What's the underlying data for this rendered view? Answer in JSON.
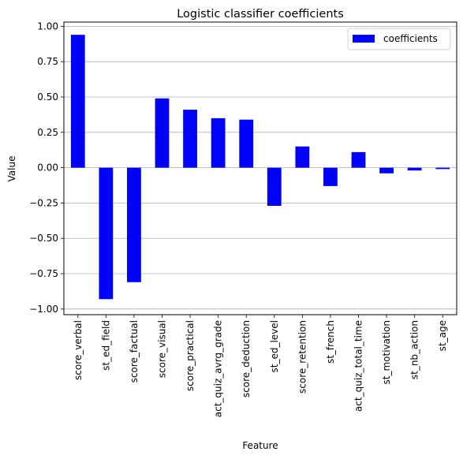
{
  "chart_data": {
    "type": "bar",
    "title": "Logistic classifier coefficients",
    "xlabel": "Feature",
    "ylabel": "Value",
    "categories": [
      "score_verbal",
      "st_ed_field",
      "score_factual",
      "score_visual",
      "score_practical",
      "act_quiz_avrg_grade",
      "score_deduction",
      "st_ed_level",
      "score_retention",
      "st_french",
      "act_quiz_total_time",
      "st_motivation",
      "st_nb_action",
      "st_age"
    ],
    "series": [
      {
        "name": "coefficients",
        "color": "#0000ff",
        "values": [
          0.94,
          -0.93,
          -0.81,
          0.49,
          0.41,
          0.35,
          0.34,
          -0.27,
          0.15,
          -0.13,
          0.11,
          -0.04,
          -0.02,
          -0.01
        ]
      }
    ],
    "ylim": [
      -1.04,
      1.03
    ],
    "yticks": [
      -1.0,
      -0.75,
      -0.5,
      -0.25,
      0.0,
      0.25,
      0.5,
      0.75,
      1.0
    ],
    "ytick_labels": [
      "−1.00",
      "−0.75",
      "−0.50",
      "−0.25",
      "0.00",
      "0.25",
      "0.50",
      "0.75",
      "1.00"
    ],
    "grid": "horizontal",
    "legend_position": "top-right"
  }
}
